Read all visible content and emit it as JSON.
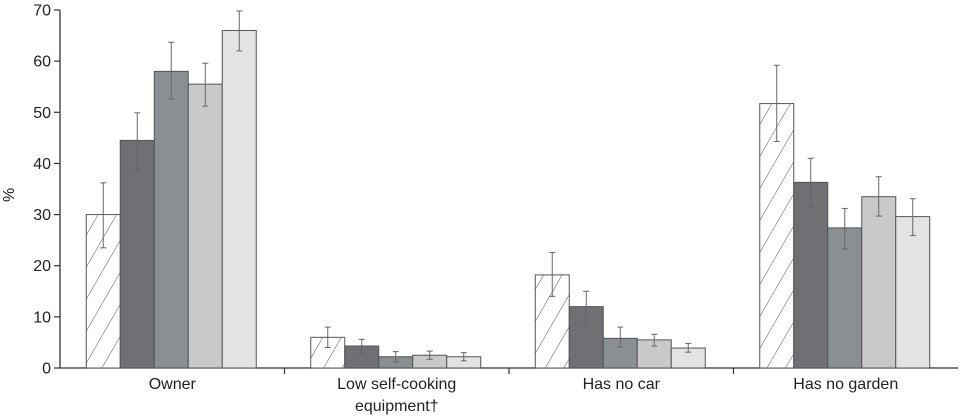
{
  "chart_data": {
    "type": "bar",
    "ylabel": "%",
    "ylim": [
      0,
      70
    ],
    "yticks": [
      "0",
      "10",
      "20",
      "30",
      "40",
      "50",
      "60",
      "70"
    ],
    "grid": false,
    "legend": "none",
    "categories": [
      [
        "Owner"
      ],
      [
        "Low self-cooking",
        "equipment†"
      ],
      [
        "Has no car"
      ],
      [
        "Has no garden"
      ]
    ],
    "series": [
      {
        "fill": "hatch",
        "values": [
          30,
          6,
          18.2,
          51.7
        ],
        "err_low": [
          23.5,
          4.0,
          14.0,
          44.3
        ],
        "err_high": [
          36.2,
          8.0,
          22.6,
          59.2
        ]
      },
      {
        "fill": "#6f6f74",
        "values": [
          44.5,
          4.3,
          12.0,
          36.3
        ],
        "err_low": [
          38.5,
          3.0,
          8.5,
          31.5
        ],
        "err_high": [
          49.9,
          5.6,
          15.0,
          41.0
        ]
      },
      {
        "fill": "#8a8f93",
        "values": [
          58.0,
          2.2,
          5.8,
          27.4
        ],
        "err_low": [
          52.6,
          1.2,
          4.1,
          23.3
        ],
        "err_high": [
          63.7,
          3.2,
          8.0,
          31.2
        ]
      },
      {
        "fill": "#c9c9c9",
        "values": [
          55.5,
          2.5,
          5.5,
          33.5
        ],
        "err_low": [
          51.2,
          1.7,
          4.3,
          29.7
        ],
        "err_high": [
          59.6,
          3.3,
          6.6,
          37.4
        ]
      },
      {
        "fill": "#e3e3e3",
        "values": [
          66.0,
          2.2,
          3.9,
          29.6
        ],
        "err_low": [
          62.0,
          1.4,
          3.1,
          25.9
        ],
        "err_high": [
          69.8,
          3.0,
          4.8,
          33.1
        ]
      }
    ]
  }
}
